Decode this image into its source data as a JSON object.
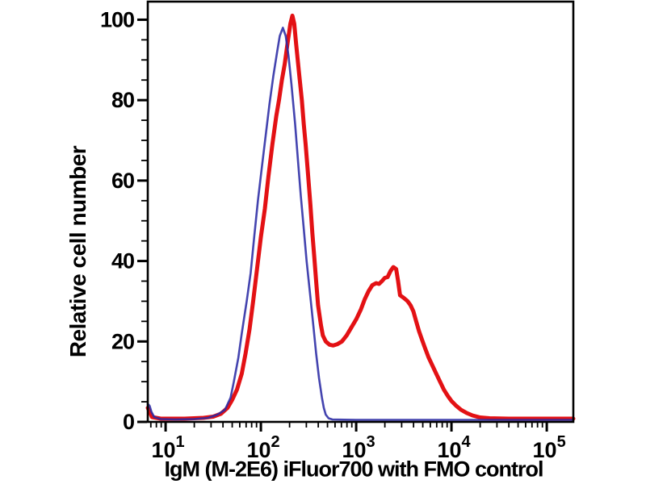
{
  "chart_data": {
    "type": "line",
    "subtype": "flow-cytometry-overlay-histogram",
    "title": "",
    "xlabel": "IgM (M-2E6) iFluor700 with FMO control",
    "ylabel": "Relative cell number",
    "x_scale": "log10",
    "x_range": [
      6.5,
      190000
    ],
    "y_range": [
      0,
      104.5
    ],
    "grid": false,
    "legend_position": "none",
    "axis_color": "#000000",
    "x_major_ticks": [
      {
        "value": 10,
        "label_base": "10",
        "label_exp": "1"
      },
      {
        "value": 100,
        "label_base": "10",
        "label_exp": "2"
      },
      {
        "value": 1000,
        "label_base": "10",
        "label_exp": "3"
      },
      {
        "value": 10000,
        "label_base": "10",
        "label_exp": "4"
      },
      {
        "value": 100000,
        "label_base": "10",
        "label_exp": "5"
      }
    ],
    "x_minor_tick_multiples": [
      2,
      3,
      4,
      5,
      6,
      7,
      8,
      9
    ],
    "y_major_ticks": [
      {
        "value": 0,
        "label": "0"
      },
      {
        "value": 20,
        "label": "20"
      },
      {
        "value": 40,
        "label": "40"
      },
      {
        "value": 60,
        "label": "60"
      },
      {
        "value": 80,
        "label": "80"
      },
      {
        "value": 100,
        "label": "100"
      }
    ],
    "y_minor_step": 5,
    "series": [
      {
        "name": "IgM (M-2E6) iFluor700",
        "color": "#e31114",
        "stroke_width": 5,
        "opacity": 1,
        "points": [
          [
            6.5,
            3.5
          ],
          [
            6.8,
            2.5
          ],
          [
            7.2,
            1.2
          ],
          [
            8.9,
            0.8
          ],
          [
            15.8,
            0.8
          ],
          [
            25,
            1
          ],
          [
            31.6,
            1.3
          ],
          [
            38,
            2
          ],
          [
            44.7,
            3.5
          ],
          [
            50,
            5.5
          ],
          [
            56,
            8
          ],
          [
            63,
            12
          ],
          [
            69,
            17
          ],
          [
            76,
            23
          ],
          [
            83,
            30
          ],
          [
            91,
            38
          ],
          [
            100,
            46
          ],
          [
            110,
            53
          ],
          [
            120,
            61
          ],
          [
            132,
            69
          ],
          [
            145,
            76
          ],
          [
            155,
            80
          ],
          [
            166,
            85
          ],
          [
            178,
            89
          ],
          [
            190,
            94
          ],
          [
            204,
            99
          ],
          [
            214,
            101
          ],
          [
            224,
            99
          ],
          [
            234,
            94
          ],
          [
            251,
            87
          ],
          [
            269,
            80
          ],
          [
            282,
            74
          ],
          [
            295,
            69
          ],
          [
            309,
            63
          ],
          [
            331,
            54
          ],
          [
            347,
            47
          ],
          [
            363,
            41
          ],
          [
            380,
            35
          ],
          [
            398,
            29
          ],
          [
            427,
            24
          ],
          [
            447,
            21.5
          ],
          [
            479,
            20
          ],
          [
            525,
            19.2
          ],
          [
            575,
            19
          ],
          [
            631,
            19.3
          ],
          [
            708,
            20
          ],
          [
            794,
            21.5
          ],
          [
            891,
            23.5
          ],
          [
            1000,
            25.5
          ],
          [
            1122,
            28
          ],
          [
            1230,
            30.5
          ],
          [
            1349,
            32.5
          ],
          [
            1479,
            34
          ],
          [
            1622,
            34.5
          ],
          [
            1738,
            34.3
          ],
          [
            1862,
            35
          ],
          [
            1995,
            35.8
          ],
          [
            2138,
            36
          ],
          [
            2291,
            37.5
          ],
          [
            2455,
            38.5
          ],
          [
            2630,
            38
          ],
          [
            2754,
            35
          ],
          [
            2884,
            31.5
          ],
          [
            3162,
            30.8
          ],
          [
            3467,
            30
          ],
          [
            3715,
            29
          ],
          [
            3981,
            27.5
          ],
          [
            4266,
            25
          ],
          [
            4571,
            22.5
          ],
          [
            4898,
            20.5
          ],
          [
            5248,
            18.5
          ],
          [
            5754,
            16
          ],
          [
            6310,
            14
          ],
          [
            6918,
            12
          ],
          [
            7586,
            10
          ],
          [
            8318,
            8
          ],
          [
            9120,
            6.5
          ],
          [
            10000,
            5.2
          ],
          [
            11220,
            4
          ],
          [
            12589,
            3
          ],
          [
            14454,
            2.2
          ],
          [
            16596,
            1.6
          ],
          [
            19953,
            1.1
          ],
          [
            25119,
            0.9
          ],
          [
            39811,
            0.8
          ],
          [
            79433,
            0.8
          ],
          [
            190000,
            0.8
          ]
        ]
      },
      {
        "name": "FMO control",
        "color": "#2a2aa4",
        "stroke_width": 2.6,
        "opacity": 0.88,
        "points": [
          [
            6.5,
            4.5
          ],
          [
            6.8,
            4
          ],
          [
            7.1,
            2.5
          ],
          [
            7.6,
            1.2
          ],
          [
            8.9,
            0.7
          ],
          [
            12.6,
            0.6
          ],
          [
            20,
            0.7
          ],
          [
            28,
            1
          ],
          [
            35,
            1.8
          ],
          [
            42,
            3
          ],
          [
            48,
            6
          ],
          [
            52,
            10
          ],
          [
            58,
            16
          ],
          [
            63,
            22
          ],
          [
            71,
            30
          ],
          [
            78,
            37
          ],
          [
            85,
            46
          ],
          [
            93,
            55
          ],
          [
            102,
            63
          ],
          [
            112,
            71
          ],
          [
            123,
            79
          ],
          [
            135,
            86
          ],
          [
            148,
            92
          ],
          [
            158,
            96
          ],
          [
            170,
            98
          ],
          [
            182,
            96
          ],
          [
            195,
            91
          ],
          [
            209,
            84
          ],
          [
            229,
            74
          ],
          [
            245,
            65
          ],
          [
            263,
            56
          ],
          [
            282,
            48
          ],
          [
            302,
            40
          ],
          [
            331,
            31
          ],
          [
            355,
            24
          ],
          [
            380,
            17
          ],
          [
            407,
            11
          ],
          [
            437,
            6
          ],
          [
            457,
            3.5
          ],
          [
            479,
            1.8
          ],
          [
            513,
            0.9
          ],
          [
            562,
            0.6
          ],
          [
            1000,
            0.5
          ],
          [
            3162,
            0.5
          ],
          [
            10000,
            0.5
          ],
          [
            31623,
            0.5
          ],
          [
            100000,
            0.5
          ],
          [
            190000,
            0.5
          ]
        ]
      }
    ]
  }
}
